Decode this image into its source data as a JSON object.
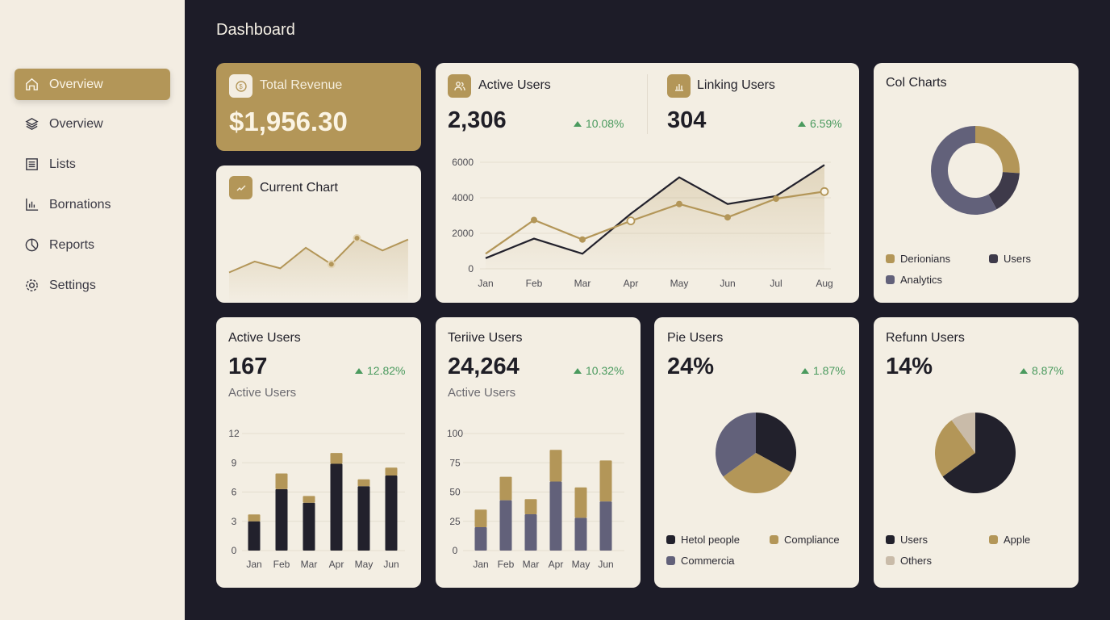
{
  "colors": {
    "gold": "#b39658",
    "dark": "#22212c",
    "slate": "#62617a",
    "beige": "#c9bba9",
    "green": "#4a9a5e",
    "bg": "#1d1c28"
  },
  "page_title": "Dashboard",
  "sidebar": {
    "items": [
      {
        "label": "Overview",
        "icon": "home-icon",
        "active": true
      },
      {
        "label": "Overview",
        "icon": "layers-icon"
      },
      {
        "label": "Lists",
        "icon": "list-icon"
      },
      {
        "label": "Bornations",
        "icon": "bar-chart-icon"
      },
      {
        "label": "Reports",
        "icon": "pie-chart-icon"
      },
      {
        "label": "Settings",
        "icon": "gear-icon"
      }
    ]
  },
  "revenue": {
    "label": "Total Revenue",
    "value": "$1,956.30",
    "icon": "dollar-icon"
  },
  "current_chart": {
    "label": "Current Chart",
    "icon": "trend-icon"
  },
  "active_users": {
    "label": "Active Users",
    "value": "2,306",
    "change": "10.08%",
    "icon": "users-icon"
  },
  "linking_users": {
    "label": "Linking Users",
    "value": "304",
    "change": "6.59%",
    "icon": "bar-chart-icon"
  },
  "col_charts": {
    "label": "Col Charts"
  },
  "card_active": {
    "label": "Active Users",
    "value": "167",
    "change": "12.82%",
    "sub": "Active Users"
  },
  "card_teriive": {
    "label": "Teriive Users",
    "value": "24,264",
    "change": "10.32%",
    "sub": "Active Users"
  },
  "card_pie": {
    "label": "Pie Users",
    "value": "24%",
    "change": "1.87%"
  },
  "card_refund": {
    "label": "Refunn Users",
    "value": "14%",
    "change": "8.87%"
  },
  "chart_data": [
    {
      "id": "sparkline",
      "type": "area",
      "values": [
        1,
        2.6,
        1.6,
        4.6,
        2.2,
        6,
        4.2,
        5.8
      ],
      "highlighted": [
        4,
        5
      ]
    },
    {
      "id": "users-line",
      "type": "line",
      "categories": [
        "Jan",
        "Feb",
        "Mar",
        "Apr",
        "May",
        "Jun",
        "Jul",
        "Aug"
      ],
      "ylim": [
        0,
        6000
      ],
      "yticks": [
        "0",
        "2000",
        "4000",
        "6000"
      ],
      "grid": true,
      "series": [
        {
          "color": "#22212c",
          "values": [
            600,
            1700,
            850,
            3100,
            5150,
            3650,
            4100,
            5850
          ],
          "area": true
        },
        {
          "color": "#b39658",
          "values": [
            850,
            2750,
            1650,
            2700,
            3650,
            2900,
            3950,
            4350
          ]
        }
      ]
    },
    {
      "id": "donut",
      "type": "pie",
      "donut": true,
      "labels": [
        "Derionians",
        "Users",
        "Analytics"
      ],
      "values": [
        26,
        16,
        58
      ],
      "colors": [
        "#b39658",
        "#3e3a4a",
        "#62617a"
      ]
    },
    {
      "id": "bars1",
      "type": "bar",
      "stacked": true,
      "categories": [
        "Jan",
        "Feb",
        "Mar",
        "Apr",
        "May",
        "Jun"
      ],
      "ylim": [
        0,
        12
      ],
      "yticks": [
        "0",
        "3",
        "6",
        "9",
        "12"
      ],
      "series": [
        {
          "color": "#22212c",
          "values": [
            3,
            6.3,
            4.9,
            8.9,
            6.6,
            7.7
          ]
        },
        {
          "color": "#b39658",
          "values": [
            0.7,
            1.6,
            0.7,
            1.1,
            0.7,
            0.8
          ]
        }
      ]
    },
    {
      "id": "bars2",
      "type": "bar",
      "stacked": true,
      "categories": [
        "Jan",
        "Feb",
        "Mar",
        "Apr",
        "May",
        "Jun"
      ],
      "ylim": [
        0,
        100
      ],
      "yticks": [
        "0",
        "25",
        "50",
        "75",
        "100"
      ],
      "series": [
        {
          "color": "#62617a",
          "values": [
            20,
            43,
            31,
            59,
            28,
            42
          ]
        },
        {
          "color": "#b39658",
          "values": [
            15,
            20,
            13,
            27,
            26,
            35
          ]
        }
      ]
    },
    {
      "id": "pie1",
      "type": "pie",
      "labels": [
        "Hetol people",
        "Compliance",
        "Commercia"
      ],
      "values": [
        33,
        32,
        35
      ],
      "colors": [
        "#22212c",
        "#b39658",
        "#62617a"
      ]
    },
    {
      "id": "pie2",
      "type": "pie",
      "labels": [
        "Users",
        "Apple",
        "Others"
      ],
      "values": [
        65,
        25,
        10
      ],
      "colors": [
        "#22212c",
        "#b39658",
        "#c9bba9"
      ]
    }
  ]
}
